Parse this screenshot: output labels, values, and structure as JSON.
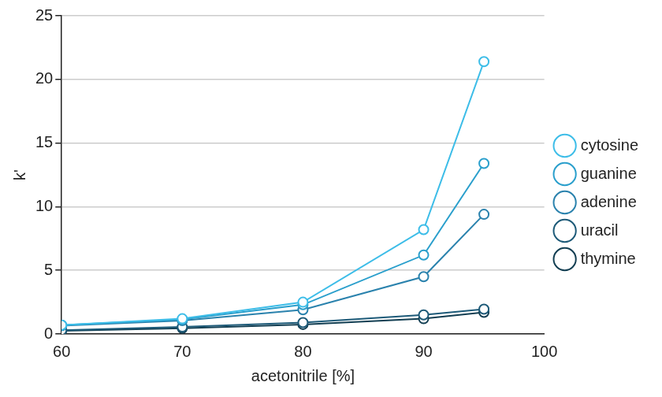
{
  "chart_data": {
    "type": "line",
    "x_label": "acetonitrile [%]",
    "y_label": "k'",
    "x": [
      60,
      70,
      80,
      90,
      95
    ],
    "series": [
      {
        "name": "cytosine",
        "color": "#3dbde8",
        "values": [
          0.7,
          1.2,
          2.5,
          8.2,
          21.4
        ]
      },
      {
        "name": "guanine",
        "color": "#2a9fcc",
        "values": [
          0.7,
          1.15,
          2.3,
          6.2,
          13.4
        ]
      },
      {
        "name": "adenine",
        "color": "#2a82ad",
        "values": [
          0.65,
          1.05,
          1.9,
          4.5,
          9.4
        ]
      },
      {
        "name": "uracil",
        "color": "#1d5a78",
        "values": [
          0.3,
          0.55,
          0.9,
          1.5,
          1.95
        ]
      },
      {
        "name": "thymine",
        "color": "#123e52",
        "values": [
          0.25,
          0.45,
          0.75,
          1.2,
          1.7
        ]
      }
    ],
    "xlim": [
      60,
      100
    ],
    "xticks": [
      60,
      70,
      80,
      90,
      100
    ],
    "ylim": [
      0,
      25
    ],
    "yticks": [
      0,
      5,
      10,
      15,
      20,
      25
    ],
    "grid": "y",
    "legend": "right",
    "marker": "circle"
  }
}
